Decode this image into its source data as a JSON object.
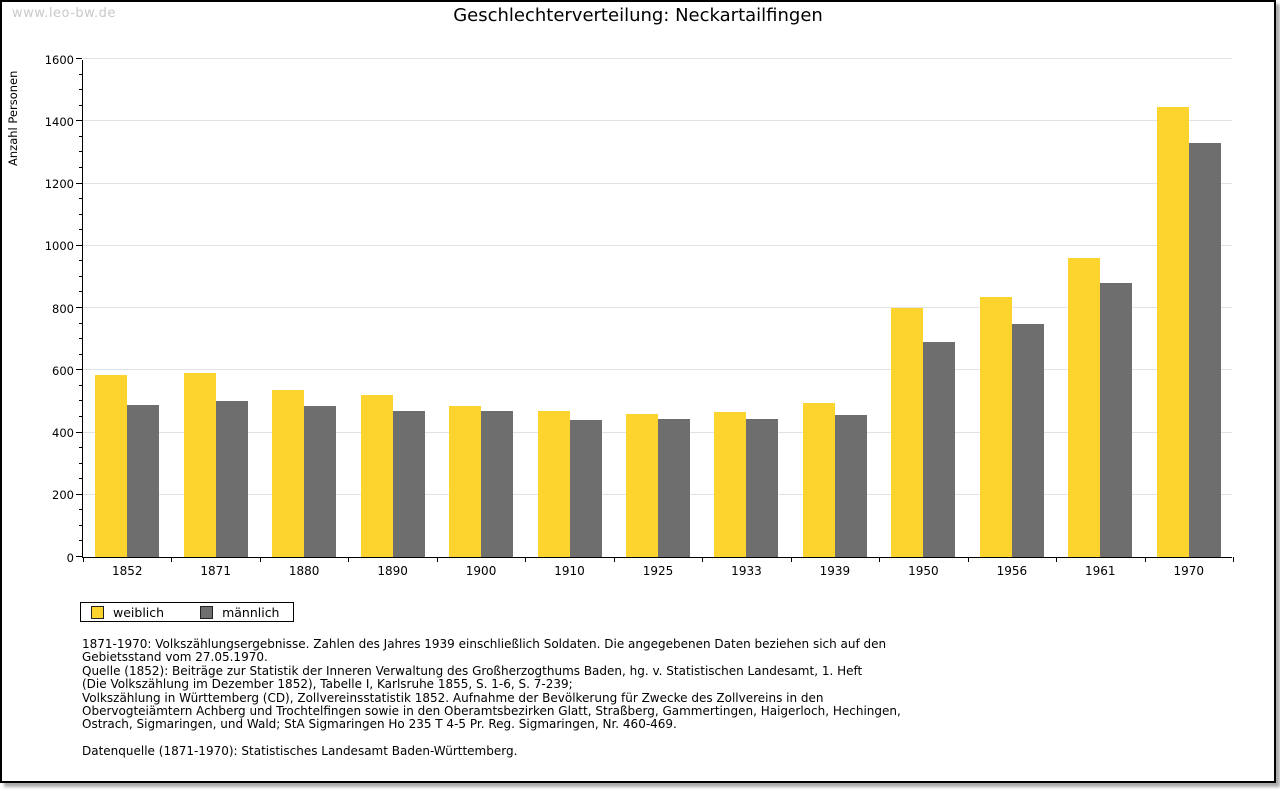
{
  "watermark": "www.leo-bw.de",
  "title": "Geschlechterverteilung: Neckartailfingen",
  "chart_data": {
    "type": "bar",
    "title": "Geschlechterverteilung: Neckartailfingen",
    "xlabel": "",
    "ylabel": "Anzahl Personen",
    "categories": [
      "1852",
      "1871",
      "1880",
      "1890",
      "1900",
      "1910",
      "1925",
      "1933",
      "1939",
      "1950",
      "1956",
      "1961",
      "1970"
    ],
    "series": [
      {
        "name": "weiblich",
        "color": "#FDD32E",
        "values": [
          585,
          590,
          535,
          520,
          485,
          470,
          460,
          465,
          495,
          800,
          835,
          960,
          1445
        ]
      },
      {
        "name": "männlich",
        "color": "#6E6E6E",
        "values": [
          490,
          500,
          485,
          470,
          470,
          440,
          445,
          445,
          455,
          690,
          750,
          880,
          1330
        ]
      }
    ],
    "ylim": [
      0,
      1600
    ],
    "y_ticks": [
      0,
      200,
      400,
      600,
      800,
      1000,
      1200,
      1400,
      1600
    ],
    "y_minor_step": 50,
    "grid": true,
    "legend_position": "bottom-left"
  },
  "legend": {
    "items": [
      {
        "label": "weiblich",
        "color": "#FDD32E"
      },
      {
        "label": "männlich",
        "color": "#6E6E6E"
      }
    ]
  },
  "footnotes": {
    "lines": [
      "1871-1970: Volkszählungsergebnisse. Zahlen des Jahres 1939 einschließlich Soldaten. Die angegebenen Daten beziehen sich auf den",
      "Gebietsstand vom 27.05.1970.",
      "Quelle (1852): Beiträge zur Statistik der Inneren Verwaltung des Großherzogthums Baden, hg. v. Statistischen Landesamt, 1. Heft",
      "(Die Volkszählung im Dezember 1852), Tabelle I, Karlsruhe 1855, S. 1-6, S. 7-239;",
      "Volkszählung in Württemberg (CD), Zollvereinsstatistik 1852. Aufnahme der Bevölkerung für Zwecke des Zollvereins in den",
      "Obervogteiämtern Achberg und Trochtelfingen sowie in den Oberamtsbezirken Glatt, Straßberg, Gammertingen, Haigerloch, Hechingen,",
      "Ostrach, Sigmaringen, und Wald; StA Sigmaringen Ho 235 T 4-5 Pr. Reg. Sigmaringen, Nr. 460-469."
    ],
    "datasource": "Datenquelle (1871-1970): Statistisches Landesamt Baden-Württemberg."
  }
}
